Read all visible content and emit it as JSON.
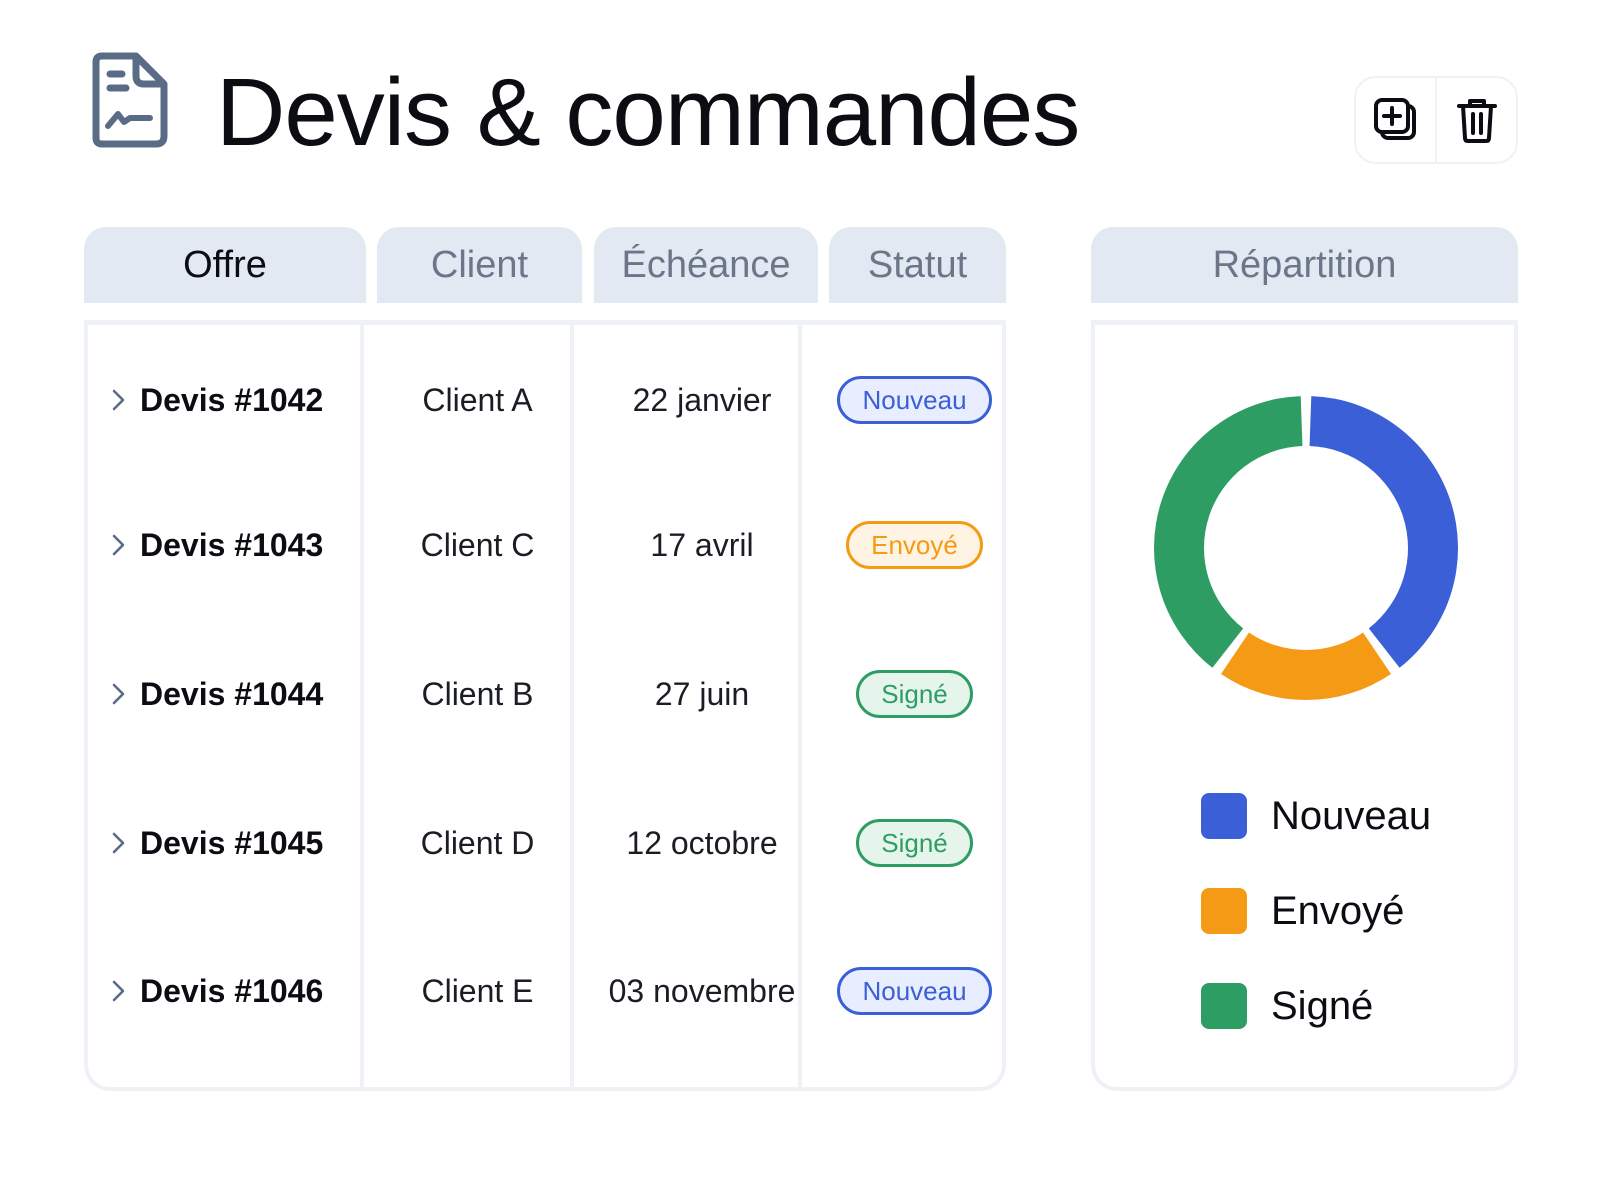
{
  "header": {
    "title": "Devis & commandes",
    "icon": "document-signature-icon",
    "actions": [
      {
        "name": "duplicate-button",
        "icon": "copy-plus-icon"
      },
      {
        "name": "delete-button",
        "icon": "trash-icon"
      }
    ]
  },
  "table": {
    "columns": [
      "Offre",
      "Client",
      "Échéance",
      "Statut"
    ],
    "active_column": "Offre",
    "rows": [
      {
        "offre": "Devis #1042",
        "client": "Client A",
        "echeance": "22 janvier",
        "statut": "Nouveau"
      },
      {
        "offre": "Devis #1043",
        "client": "Client C",
        "echeance": "17 avril",
        "statut": "Envoyé"
      },
      {
        "offre": "Devis #1044",
        "client": "Client B",
        "echeance": "27 juin",
        "statut": "Signé"
      },
      {
        "offre": "Devis #1045",
        "client": "Client D",
        "echeance": "12 octobre",
        "statut": "Signé"
      },
      {
        "offre": "Devis #1046",
        "client": "Client E",
        "echeance": "03 novembre",
        "statut": "Nouveau"
      }
    ]
  },
  "statuses": {
    "Nouveau": {
      "color": "#3a5fd6",
      "bg": "#e8eeff"
    },
    "Envoyé": {
      "color": "#f59a14",
      "bg": "#fff4e3"
    },
    "Signé": {
      "color": "#2e9d63",
      "bg": "#e6f5ec"
    }
  },
  "chart_data": {
    "type": "pie",
    "title": "Répartition",
    "donut": true,
    "categories": [
      "Nouveau",
      "Envoyé",
      "Signé"
    ],
    "values": [
      2,
      1,
      2
    ],
    "colors": [
      "#3a5fd6",
      "#f59a14",
      "#2e9d63"
    ],
    "legend_position": "bottom"
  }
}
